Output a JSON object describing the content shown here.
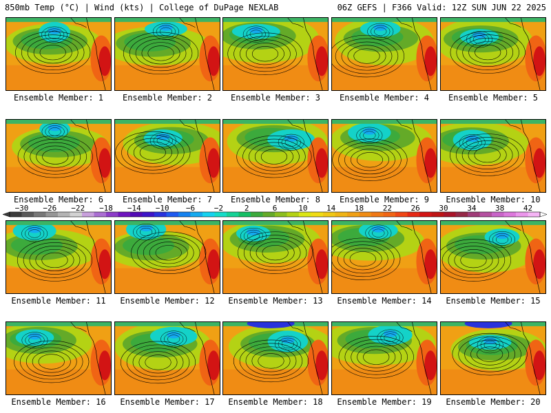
{
  "header": {
    "left_title": "850mb Temp (°C) | Wind (kts) | College of DuPage NEXLAB",
    "right_title": "06Z GEFS | F366 Valid: 12Z SUN JUN 22 2025"
  },
  "panels": [
    {
      "label": "Ensemble Member: 1"
    },
    {
      "label": "Ensemble Member: 2"
    },
    {
      "label": "Ensemble Member: 3"
    },
    {
      "label": "Ensemble Member: 4"
    },
    {
      "label": "Ensemble Member: 5"
    },
    {
      "label": "Ensemble Member: 6"
    },
    {
      "label": "Ensemble Member: 7"
    },
    {
      "label": "Ensemble Member: 8"
    },
    {
      "label": "Ensemble Member: 9"
    },
    {
      "label": "Ensemble Member: 10"
    },
    {
      "label": "Ensemble Member: 11"
    },
    {
      "label": "Ensemble Member: 12"
    },
    {
      "label": "Ensemble Member: 13"
    },
    {
      "label": "Ensemble Member: 14"
    },
    {
      "label": "Ensemble Member: 15"
    },
    {
      "label": "Ensemble Member: 16"
    },
    {
      "label": "Ensemble Member: 17"
    },
    {
      "label": "Ensemble Member: 18"
    },
    {
      "label": "Ensemble Member: 19"
    },
    {
      "label": "Ensemble Member: 20"
    }
  ],
  "colorbar": {
    "tick_labels": [
      "−30",
      "−26",
      "−22",
      "−18",
      "−14",
      "−10",
      "−6",
      "−2",
      "2",
      "6",
      "10",
      "14",
      "18",
      "22",
      "26",
      "30",
      "34",
      "38",
      "42"
    ],
    "colors": [
      "#3c3c3c",
      "#5a5a5a",
      "#787878",
      "#969696",
      "#b4b4b4",
      "#d2d2d2",
      "#c8a0dc",
      "#aa6ed2",
      "#8c3cc8",
      "#6e14be",
      "#500ab4",
      "#3c14c8",
      "#2832dc",
      "#1e5af0",
      "#1482f0",
      "#14aaf0",
      "#14d2f0",
      "#14dcc8",
      "#14d296",
      "#14be64",
      "#3caa3c",
      "#64aa28",
      "#8cbe1e",
      "#b4d214",
      "#dce614",
      "#f0dc14",
      "#f0c814",
      "#f0b414",
      "#f0a014",
      "#f08c14",
      "#f07814",
      "#f06414",
      "#f04614",
      "#e62814",
      "#d21414",
      "#be1414",
      "#aa1428",
      "#962846",
      "#a03c78",
      "#b450a0",
      "#c864c8",
      "#dc78dc",
      "#eb96eb",
      "#f5b4f5"
    ]
  }
}
